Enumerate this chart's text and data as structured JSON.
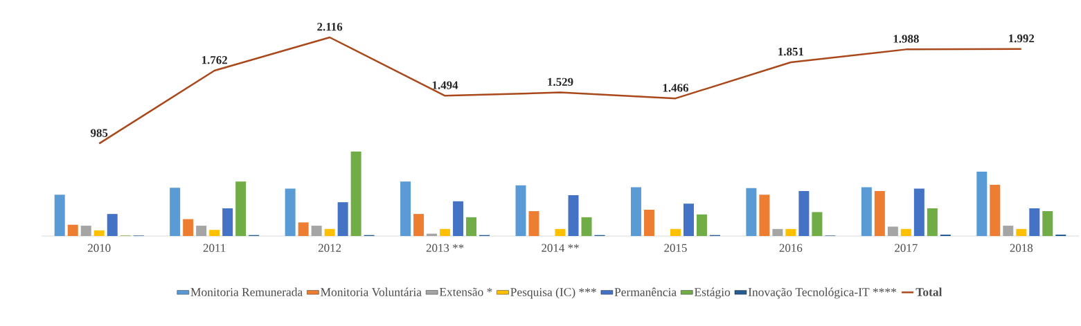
{
  "chart_data": {
    "type": "bar",
    "categories": [
      "2010",
      "2011",
      "2012",
      "2013 **",
      "2014 **",
      "2015",
      "2016",
      "2017",
      "2018"
    ],
    "tick_labels": "x",
    "legend": "bottom",
    "series": [
      {
        "name": "Monitoria Remunerada",
        "color": "#5b9bd5",
        "values": [
          440,
          515,
          505,
          580,
          540,
          520,
          510,
          520,
          685
        ]
      },
      {
        "name": "Monitoria Voluntária",
        "color": "#ed7d31",
        "values": [
          120,
          180,
          145,
          235,
          265,
          280,
          440,
          480,
          545
        ]
      },
      {
        "name": "Extensão *",
        "color": "#a5a5a5",
        "values": [
          110,
          110,
          110,
          25,
          0,
          0,
          75,
          100,
          110
        ]
      },
      {
        "name": "Pesquisa (IC) ***",
        "color": "#ffc000",
        "values": [
          60,
          65,
          75,
          75,
          75,
          75,
          75,
          75,
          75
        ]
      },
      {
        "name": "Permanência",
        "color": "#4472c4",
        "values": [
          235,
          295,
          360,
          370,
          435,
          345,
          480,
          505,
          295
        ]
      },
      {
        "name": "Estágio",
        "color": "#70ad47",
        "values": [
          5,
          580,
          900,
          200,
          200,
          230,
          255,
          295,
          265
        ]
      },
      {
        "name": "Inovação Tecnológica-IT ****",
        "color": "#255e91",
        "values": [
          5,
          10,
          10,
          10,
          10,
          10,
          5,
          15,
          15
        ]
      },
      {
        "name": "Total",
        "type": "line",
        "color": "#a9481a",
        "values": [
          985,
          1762,
          2116,
          1494,
          1529,
          1466,
          1851,
          1988,
          1992
        ],
        "value_labels": [
          "985",
          "1.762",
          "2.116",
          "1.494",
          "1.529",
          "1.466",
          "1.851",
          "1.988",
          "1.992"
        ]
      }
    ]
  }
}
